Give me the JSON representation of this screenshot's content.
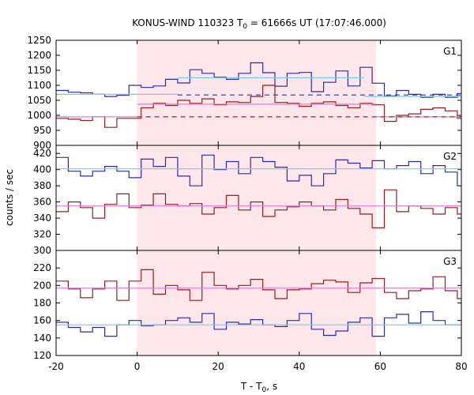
{
  "chart_data": {
    "type": "line",
    "title": "KONUS-WIND 110323 T",
    "title_sub": "0",
    "title_rest": " = 61666s UT (17:07:46.000)",
    "xlabel_main": "T - T",
    "xlabel_sub": "0",
    "xlabel_rest": ", s",
    "ylabel": "counts / sec",
    "xlim": [
      -20,
      80
    ],
    "x_ticks": [
      "-20",
      "0",
      "20",
      "40",
      "60",
      "80"
    ],
    "x_tick_values": [
      -20,
      0,
      20,
      40,
      60,
      80
    ],
    "shaded_interval": [
      0,
      59
    ],
    "colors": {
      "blue_step": "#2b2bb0",
      "red_step": "#9b1c1c",
      "blue_fit": "#7fc7e8",
      "red_fit": "#e27ad6",
      "shade": "#fde7ea",
      "blue_dash": "#2b2bb0",
      "red_dash": "#b01c1c"
    },
    "bin_edges_note": "",
    "panels": [
      {
        "label": "G1",
        "ylim": [
          900,
          1250
        ],
        "y_ticks": [
          900,
          950,
          1000,
          1050,
          1100,
          1150,
          1200,
          1250
        ],
        "series": [
          {
            "color": "blue_step",
            "x": [
              -20,
              -17,
              -14,
              -11,
              -8,
              -5,
              -2,
              1,
              4,
              7,
              10,
              13,
              16,
              19,
              22,
              25,
              28,
              31,
              34,
              37,
              40,
              43,
              46,
              49,
              52,
              55,
              58,
              61,
              64,
              67,
              70,
              73,
              76,
              79
            ],
            "values": [
              1083,
              1077,
              1075,
              1070,
              1063,
              1067,
              1100,
              1093,
              1098,
              1120,
              1108,
              1152,
              1140,
              1127,
              1120,
              1140,
              1175,
              1142,
              1097,
              1140,
              1143,
              1079,
              1110,
              1148,
              1098,
              1160,
              1107,
              1065,
              1083,
              1070,
              1060,
              1070,
              1060,
              1073
            ]
          },
          {
            "color": "red_step",
            "x": [
              -20,
              -17,
              -14,
              -11,
              -8,
              -5,
              -2,
              1,
              4,
              7,
              10,
              13,
              16,
              19,
              22,
              25,
              28,
              31,
              34,
              37,
              40,
              43,
              46,
              49,
              52,
              55,
              58,
              61,
              64,
              67,
              70,
              73,
              76,
              79
            ],
            "values": [
              990,
              987,
              983,
              995,
              960,
              990,
              990,
              1025,
              1040,
              1033,
              1050,
              1040,
              1055,
              1035,
              1045,
              1043,
              1063,
              1100,
              1043,
              1040,
              1030,
              1040,
              1045,
              1033,
              1025,
              1040,
              1035,
              980,
              1000,
              1005,
              1020,
              1025,
              1015,
              990
            ]
          },
          {
            "color": "blue_fit",
            "x": [
              -20,
              10
            ],
            "values": [
              1070,
              1070
            ]
          },
          {
            "color": "blue_fit",
            "x": [
              10,
              56
            ],
            "values": [
              1125,
              1125
            ]
          },
          {
            "color": "blue_fit",
            "x": [
              56,
              80
            ],
            "values": [
              1063,
              1063
            ]
          },
          {
            "color": "blue_dash",
            "x": [
              10,
              80
            ],
            "values": [
              1068,
              1068
            ],
            "dashed": true
          },
          {
            "color": "red_fit",
            "x": [
              -20,
              0
            ],
            "values": [
              995,
              995
            ]
          },
          {
            "color": "red_fit",
            "x": [
              0,
              59
            ],
            "values": [
              1037,
              1037
            ]
          },
          {
            "color": "red_fit",
            "x": [
              59,
              80
            ],
            "values": [
              995,
              995
            ]
          },
          {
            "color": "red_dash",
            "x": [
              0,
              80
            ],
            "values": [
              995,
              995
            ],
            "dashed": true
          }
        ]
      },
      {
        "label": "G2",
        "ylim": [
          300,
          430
        ],
        "y_ticks": [
          300,
          320,
          340,
          360,
          380,
          400,
          420
        ],
        "series": [
          {
            "color": "blue_step",
            "x": [
              -20,
              -17,
              -14,
              -11,
              -8,
              -5,
              -2,
              1,
              4,
              7,
              10,
              13,
              16,
              19,
              22,
              25,
              28,
              31,
              34,
              37,
              40,
              43,
              46,
              49,
              52,
              55,
              58,
              61,
              64,
              67,
              70,
              73,
              76,
              79
            ],
            "values": [
              415,
              398,
              392,
              398,
              404,
              398,
              390,
              413,
              404,
              415,
              392,
              380,
              418,
              400,
              410,
              395,
              415,
              410,
              403,
              386,
              393,
              380,
              395,
              412,
              408,
              402,
              411,
              401,
              405,
              410,
              395,
              405,
              397,
              380
            ]
          },
          {
            "color": "red_step",
            "x": [
              -20,
              -17,
              -14,
              -11,
              -8,
              -5,
              -2,
              1,
              4,
              7,
              10,
              13,
              16,
              19,
              22,
              25,
              28,
              31,
              34,
              37,
              40,
              43,
              46,
              49,
              52,
              55,
              58,
              61,
              64,
              67,
              70,
              73,
              76,
              79
            ],
            "values": [
              348,
              360,
              353,
              340,
              357,
              370,
              353,
              356,
              370,
              357,
              355,
              358,
              345,
              353,
              368,
              350,
              360,
              342,
              350,
              354,
              360,
              355,
              350,
              363,
              352,
              345,
              328,
              375,
              348,
              355,
              352,
              345,
              353,
              345
            ]
          },
          {
            "color": "blue_fit",
            "x": [
              -20,
              80
            ],
            "values": [
              401,
              401
            ]
          },
          {
            "color": "red_fit",
            "x": [
              -20,
              80
            ],
            "values": [
              355,
              355
            ]
          }
        ]
      },
      {
        "label": "G3",
        "ylim": [
          120,
          240
        ],
        "y_ticks": [
          120,
          140,
          160,
          180,
          200,
          220
        ],
        "series": [
          {
            "color": "red_step",
            "x": [
              -20,
              -17,
              -14,
              -11,
              -8,
              -5,
              -2,
              1,
              4,
              7,
              10,
              13,
              16,
              19,
              22,
              25,
              28,
              31,
              34,
              37,
              40,
              43,
              46,
              49,
              52,
              55,
              58,
              61,
              64,
              67,
              70,
              73,
              76,
              79
            ],
            "values": [
              205,
              196,
              186,
              196,
              205,
              183,
              205,
              218,
              190,
              200,
              195,
              183,
              215,
              200,
              196,
              200,
              207,
              195,
              185,
              195,
              196,
              202,
              206,
              204,
              192,
              203,
              208,
              192,
              185,
              194,
              196,
              210,
              194,
              185
            ]
          },
          {
            "color": "blue_step",
            "x": [
              -20,
              -17,
              -14,
              -11,
              -8,
              -5,
              -2,
              1,
              4,
              7,
              10,
              13,
              16,
              19,
              22,
              25,
              28,
              31,
              34,
              37,
              40,
              43,
              46,
              49,
              52,
              55,
              58,
              61,
              64,
              67,
              70,
              73,
              76,
              79
            ],
            "values": [
              158,
              152,
              147,
              152,
              142,
              155,
              160,
              154,
              155,
              160,
              163,
              158,
              168,
              150,
              158,
              156,
              161,
              155,
              153,
              160,
              168,
              150,
              143,
              148,
              158,
              163,
              142,
              163,
              167,
              157,
              170,
              160,
              155,
              155
            ]
          },
          {
            "color": "red_fit",
            "x": [
              -20,
              80
            ],
            "values": [
              197,
              197
            ]
          },
          {
            "color": "blue_fit",
            "x": [
              -20,
              80
            ],
            "values": [
              155,
              155
            ]
          }
        ]
      }
    ]
  }
}
